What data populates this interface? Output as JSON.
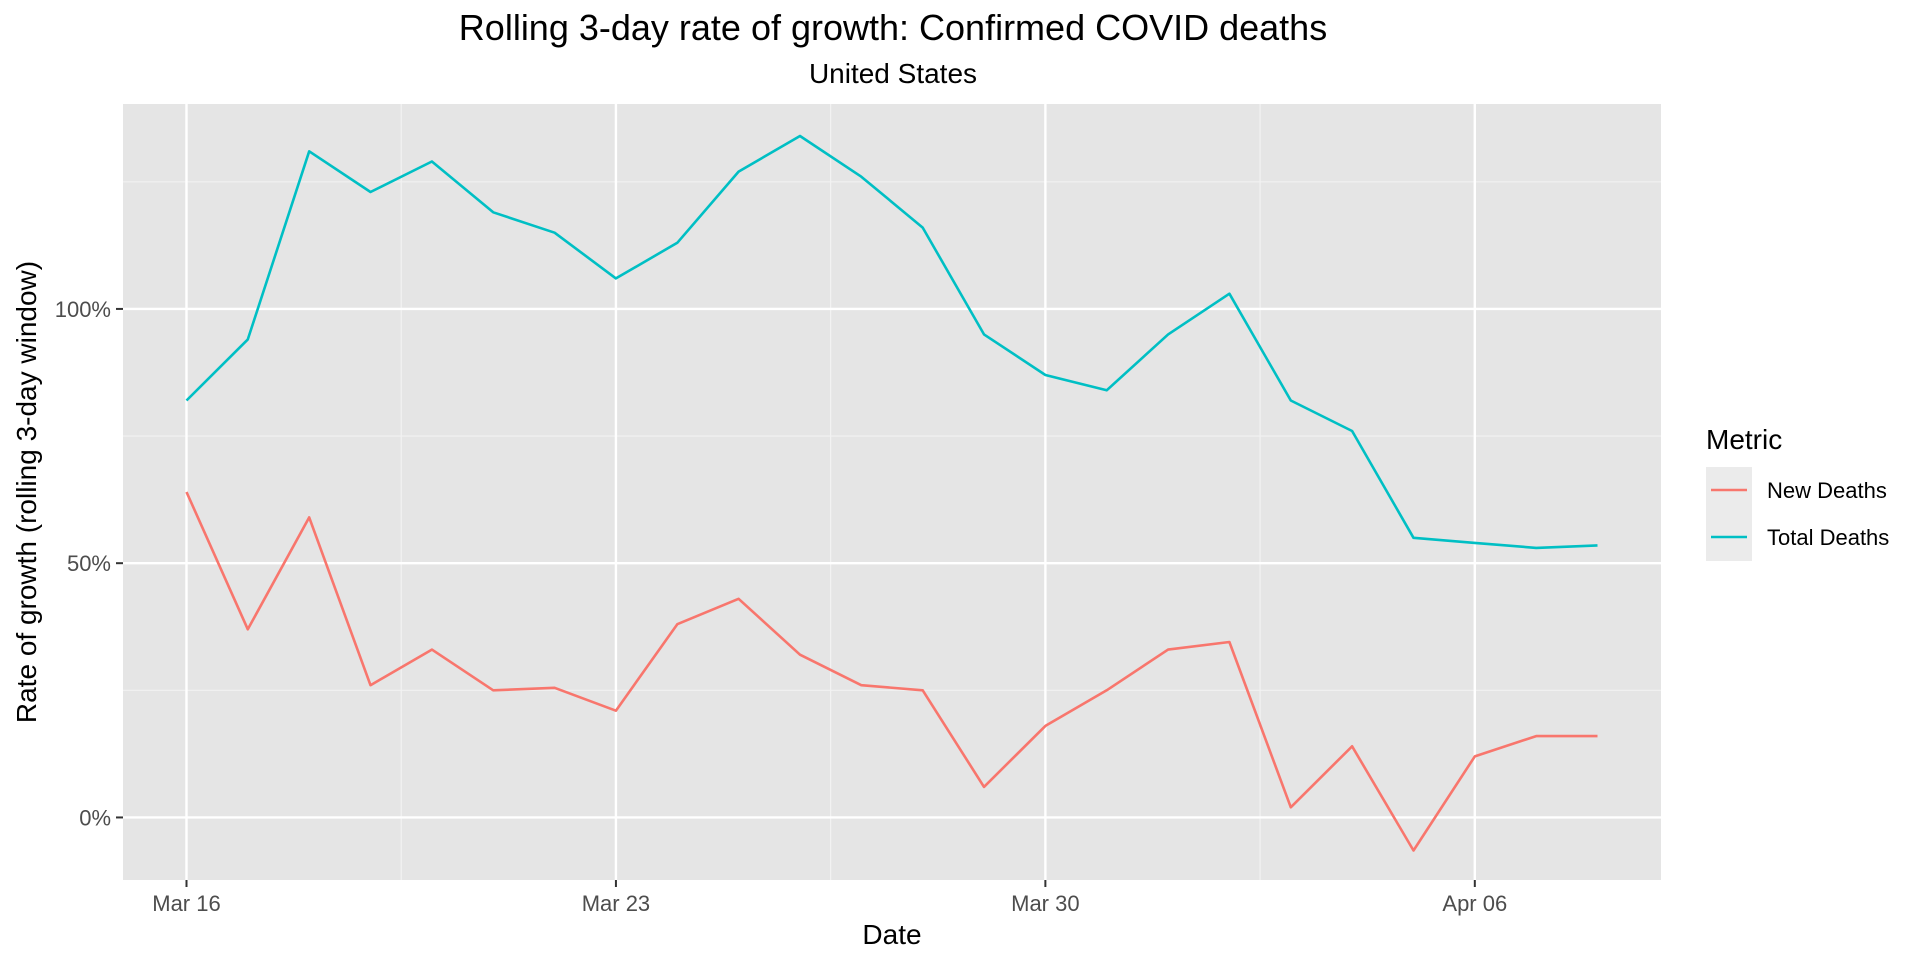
{
  "chart_data": {
    "type": "line",
    "title": "Rolling 3-day rate of growth: Confirmed COVID deaths",
    "subtitle": "United States",
    "xlabel": "Date",
    "ylabel": "Rate of growth (rolling 3-day window)",
    "x_ticks": [
      {
        "date": "2020-03-16",
        "label": "Mar 16"
      },
      {
        "date": "2020-03-23",
        "label": "Mar 23"
      },
      {
        "date": "2020-03-30",
        "label": "Mar 30"
      },
      {
        "date": "2020-04-06",
        "label": "Apr 06"
      }
    ],
    "y_ticks": [
      {
        "value": 0,
        "label": "0%"
      },
      {
        "value": 0.5,
        "label": "50%"
      },
      {
        "value": 1.0,
        "label": "100%"
      }
    ],
    "xlim": [
      "2020-03-16",
      "2020-04-08"
    ],
    "ylim": [
      -0.06,
      1.34
    ],
    "grid": true,
    "legend": {
      "title": "Metric",
      "position": "right"
    },
    "x": [
      "2020-03-16",
      "2020-03-17",
      "2020-03-18",
      "2020-03-19",
      "2020-03-20",
      "2020-03-21",
      "2020-03-22",
      "2020-03-23",
      "2020-03-24",
      "2020-03-25",
      "2020-03-26",
      "2020-03-27",
      "2020-03-28",
      "2020-03-29",
      "2020-03-30",
      "2020-03-31",
      "2020-04-01",
      "2020-04-02",
      "2020-04-03",
      "2020-04-04",
      "2020-04-05",
      "2020-04-06",
      "2020-04-07",
      "2020-04-08"
    ],
    "series": [
      {
        "name": "New Deaths",
        "color": "#F8766D",
        "values": [
          0.64,
          0.37,
          0.59,
          0.26,
          0.33,
          0.25,
          0.255,
          0.21,
          0.38,
          0.43,
          0.32,
          0.26,
          0.25,
          0.06,
          0.18,
          0.25,
          0.33,
          0.345,
          0.02,
          0.14,
          -0.065,
          0.12,
          0.16,
          0.16
        ]
      },
      {
        "name": "Total Deaths",
        "color": "#00BFC4",
        "values": [
          0.82,
          0.94,
          1.31,
          1.23,
          1.29,
          1.19,
          1.15,
          1.06,
          1.13,
          1.27,
          1.34,
          1.26,
          1.16,
          0.95,
          0.87,
          0.84,
          0.95,
          1.03,
          0.82,
          0.76,
          0.55,
          0.54,
          0.53,
          0.535
        ]
      }
    ]
  }
}
